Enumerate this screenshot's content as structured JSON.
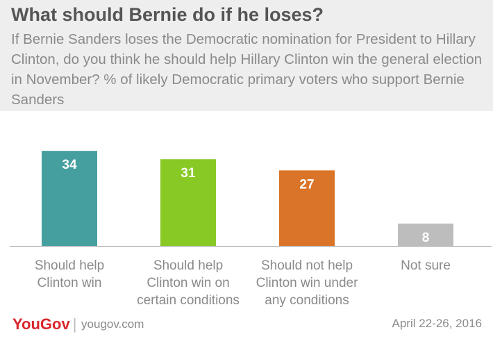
{
  "header": {
    "title": "What should Bernie do if he loses?",
    "subtitle": "If Bernie Sanders loses the Democratic nomination for President to Hillary Clinton, do you think he should help Hillary Clinton win the general election in November? % of likely Democratic primary voters who support Bernie Sanders"
  },
  "chart_data": {
    "type": "bar",
    "title": "What should Bernie do if he loses?",
    "categories": [
      [
        "Should help",
        "Clinton win"
      ],
      [
        "Should help",
        "Clinton win on",
        "certain conditions"
      ],
      [
        "Should not help",
        "Clinton win under",
        "any conditions"
      ],
      [
        "Not sure"
      ]
    ],
    "values": [
      34,
      31,
      27,
      8
    ],
    "colors": [
      "#459f9e",
      "#88c925",
      "#da7428",
      "#bdbdbd"
    ],
    "ylim": [
      0,
      40
    ],
    "grid": false,
    "legend": "none",
    "xlabel": "",
    "ylabel": ""
  },
  "footer": {
    "brand": "YouGov",
    "separator": "|",
    "url": "yougov.com",
    "date": "April 22-26, 2016"
  },
  "colors": {
    "header_bg": "#eeeeee",
    "title_text": "#555555",
    "body_text": "#8a8a8a",
    "brand_red": "#d9262b"
  }
}
